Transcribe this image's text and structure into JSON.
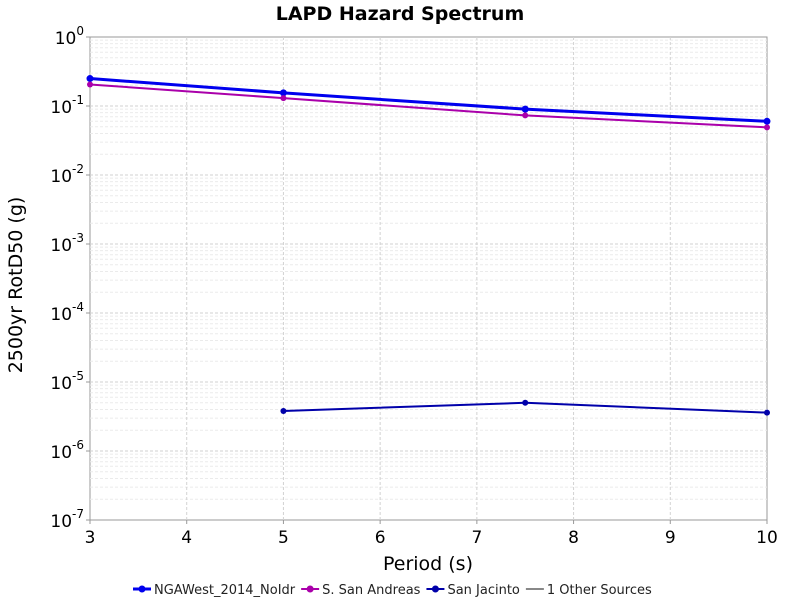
{
  "chart_data": {
    "type": "line",
    "title": "LAPD Hazard Spectrum",
    "xlabel": "Period (s)",
    "ylabel": "2500yr RotD50 (g)",
    "xlim": [
      3,
      10
    ],
    "ylim": [
      1e-07,
      1
    ],
    "yscale": "log",
    "grid": true,
    "legend_position": "bottom",
    "x_ticks": [
      "3",
      "4",
      "5",
      "6",
      "7",
      "8",
      "9",
      "10"
    ],
    "y_ticks": [
      {
        "base": "10",
        "exp": "0"
      },
      {
        "base": "10",
        "exp": "-1"
      },
      {
        "base": "10",
        "exp": "-2"
      },
      {
        "base": "10",
        "exp": "-3"
      },
      {
        "base": "10",
        "exp": "-4"
      },
      {
        "base": "10",
        "exp": "-5"
      },
      {
        "base": "10",
        "exp": "-6"
      },
      {
        "base": "10",
        "exp": "-7"
      }
    ],
    "series": [
      {
        "name": "NGAWest_2014_NoIdr",
        "color": "#0000ee",
        "x": [
          3,
          5,
          7.5,
          10
        ],
        "y": [
          0.25,
          0.155,
          0.09,
          0.06
        ]
      },
      {
        "name": "S. San Andreas",
        "color": "#aa00aa",
        "x": [
          3,
          5,
          7.5,
          10
        ],
        "y": [
          0.205,
          0.13,
          0.073,
          0.049
        ]
      },
      {
        "name": "San Jacinto",
        "color": "#0000aa",
        "x": [
          5,
          7.5,
          10
        ],
        "y": [
          3.8e-06,
          5e-06,
          3.6e-06
        ]
      },
      {
        "name": "1 Other Sources",
        "color": "#888888",
        "x": [],
        "y": []
      }
    ]
  }
}
